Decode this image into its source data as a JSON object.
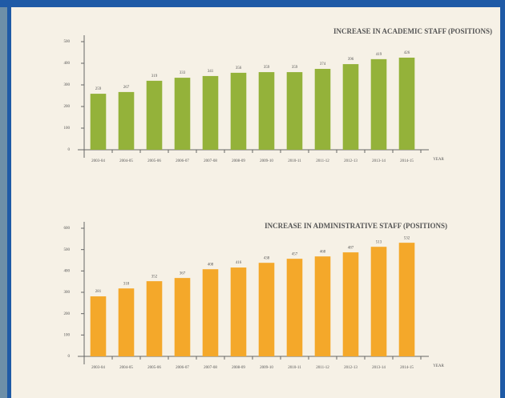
{
  "chart_data": [
    {
      "type": "bar",
      "title": "INCREASE IN ACADEMIC STAFF (POSITIONS)",
      "categories": [
        "2003-04",
        "2004-05",
        "2005-06",
        "2006-07",
        "2007-08",
        "2008-09",
        "2009-10",
        "2010-11",
        "2011-12",
        "2012-13",
        "2013-14",
        "2014-15"
      ],
      "values": [
        259,
        267,
        319,
        333,
        341,
        356,
        359,
        359,
        374,
        396,
        419,
        426
      ],
      "color": "#94b23a",
      "ylim": [
        0,
        500
      ],
      "yticks": [
        0,
        100,
        200,
        300,
        400,
        500
      ],
      "x_label": "YEAR"
    },
    {
      "type": "bar",
      "title": "INCREASE IN ADMINISTRATIVE STAFF (POSITIONS)",
      "categories": [
        "2003-04",
        "2004-05",
        "2005-06",
        "2006-07",
        "2007-08",
        "2008-09",
        "2009-10",
        "2010-11",
        "2011-12",
        "2012-13",
        "2013-14",
        "2014-15"
      ],
      "values": [
        281,
        318,
        352,
        367,
        408,
        416,
        438,
        457,
        468,
        487,
        513,
        532
      ],
      "color": "#f4a82a",
      "ylim": [
        0,
        600
      ],
      "yticks": [
        0,
        100,
        200,
        300,
        400,
        500,
        600
      ],
      "x_label": "YEAR"
    }
  ]
}
